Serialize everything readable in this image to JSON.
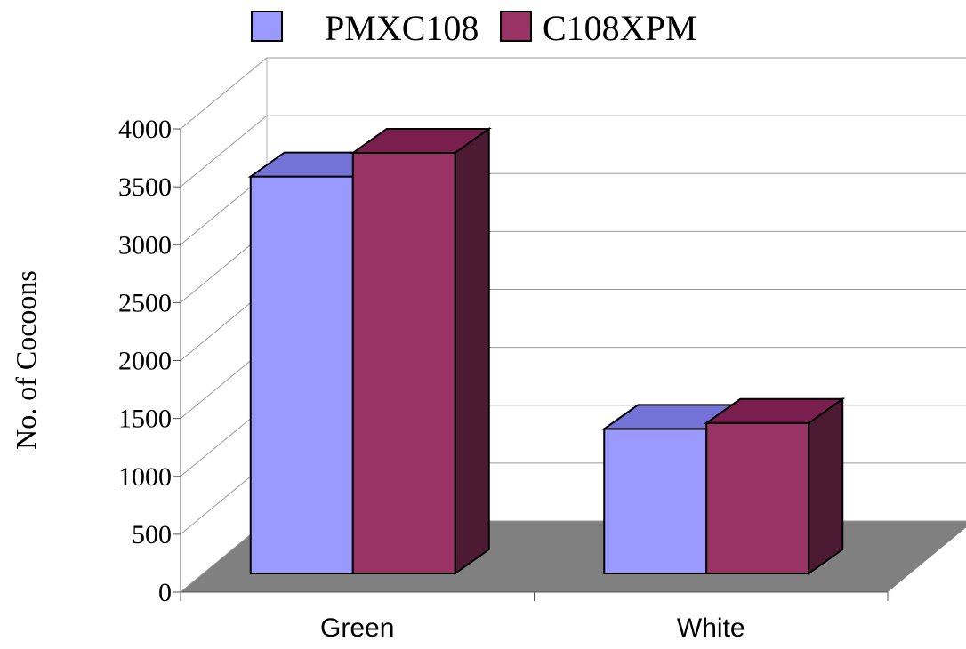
{
  "chart_data": {
    "type": "bar",
    "title": "",
    "xlabel": "",
    "ylabel": "No. of Cocoons",
    "categories": [
      "Green",
      "White"
    ],
    "series": [
      {
        "name": "PMXC108",
        "values": [
          3350,
          1220
        ],
        "color": "#9999ff",
        "top_color": "#7474d8"
      },
      {
        "name": "C108XPM",
        "values": [
          3550,
          1270
        ],
        "color": "#993366",
        "top_color": "#7a1f4d",
        "side_color": "#4d1a33"
      }
    ],
    "ylim": [
      0,
      4000
    ],
    "yticks": [
      "0",
      "500",
      "1000",
      "1500",
      "2000",
      "2500",
      "3000",
      "3500",
      "4000"
    ],
    "grid": true,
    "legend_position": "top",
    "floor_color": "#808080",
    "style": "3d-clustered-column"
  }
}
